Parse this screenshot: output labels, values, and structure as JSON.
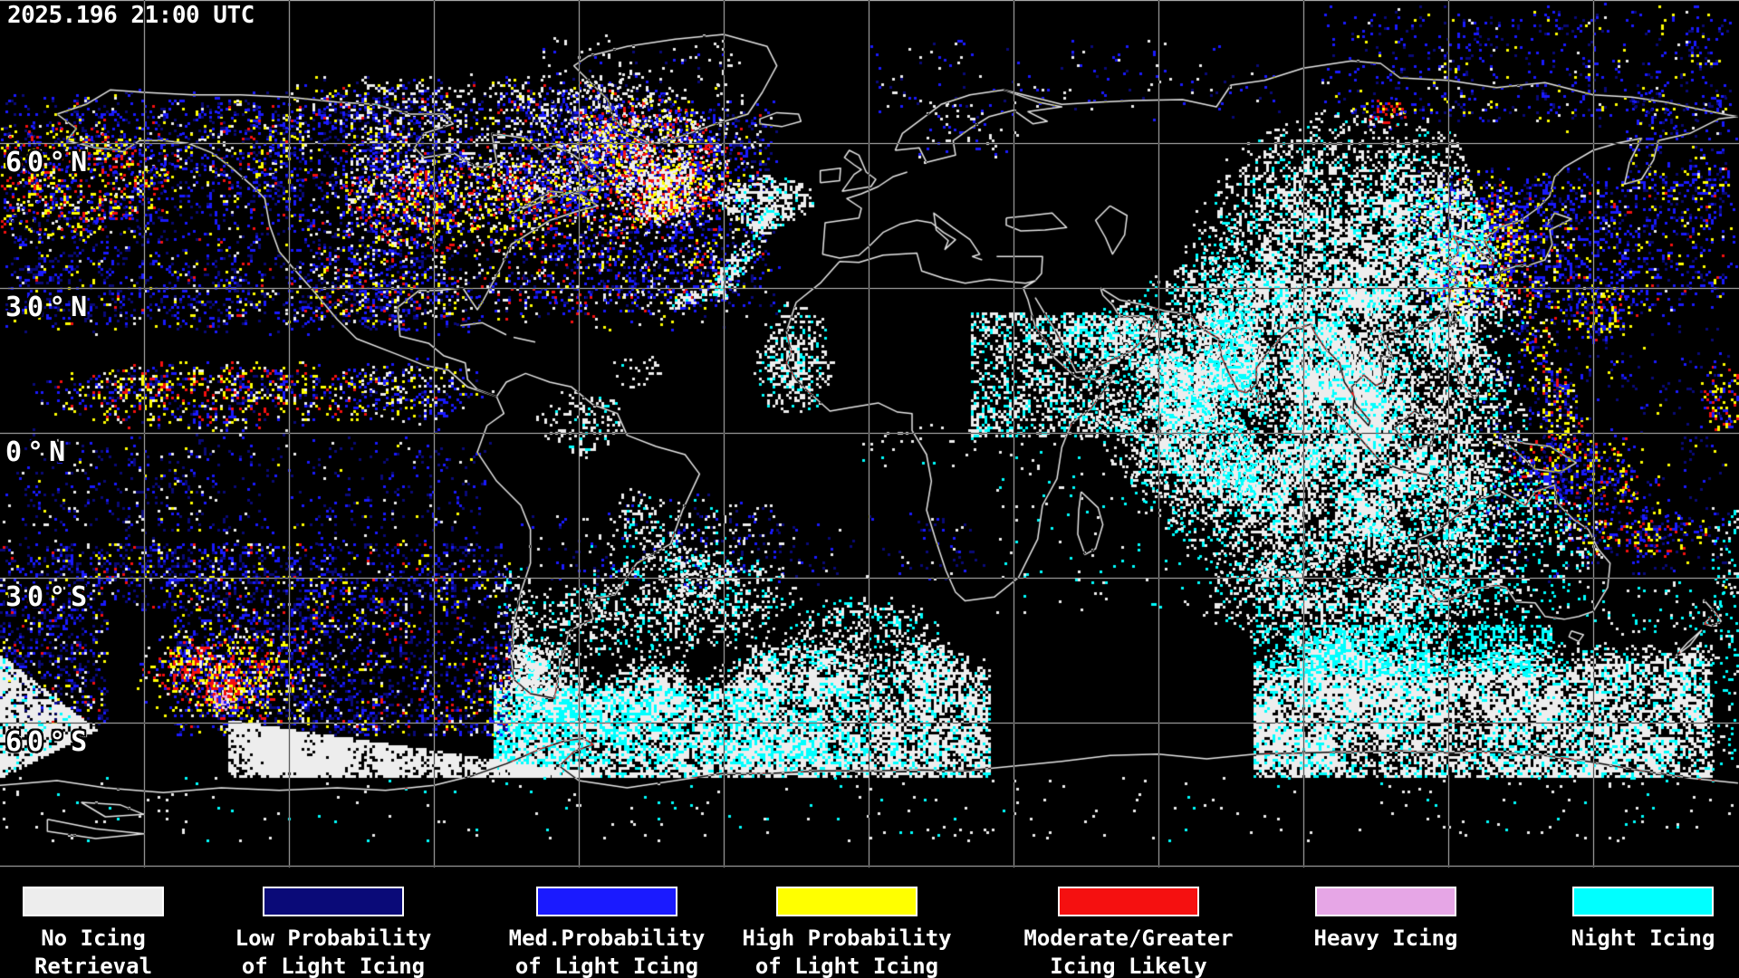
{
  "app": {
    "timestamp": "2025.196 21:00 UTC"
  },
  "map": {
    "lat_labels": [
      {
        "text": "60°N"
      },
      {
        "text": "30°N"
      },
      {
        "text": "0°N"
      },
      {
        "text": "30°S"
      },
      {
        "text": "60°S"
      }
    ],
    "grid": {
      "lat_step_deg": 30,
      "lon_step_deg": 30
    }
  },
  "palette": {
    "background": "#000000",
    "coastline": "#E6E6E6",
    "gridline": "#C0C0C0",
    "no_icing": "#EDEDED",
    "low_probability": "#0A0A78",
    "med_probability": "#1A1AFF",
    "high_probability": "#FFFF00",
    "moderate_greater": "#F51010",
    "heavy": "#E6A6E6",
    "night": "#00FFFF"
  },
  "legend": {
    "items": [
      {
        "color": "#EDEDED",
        "line1": "No Icing",
        "line2": "Retrieval"
      },
      {
        "color": "#0A0A78",
        "line1": "Low Probability",
        "line2": "of Light Icing"
      },
      {
        "color": "#1A1AFF",
        "line1": "Med.Probability",
        "line2": "of Light Icing"
      },
      {
        "color": "#FFFF00",
        "line1": "High Probability",
        "line2": "of Light Icing"
      },
      {
        "color": "#F51010",
        "line1": "Moderate/Greater",
        "line2": "Icing Likely"
      },
      {
        "color": "#E6A6E6",
        "line1": "Heavy Icing",
        "line2": ""
      },
      {
        "color": "#00FFFF",
        "line1": "Night Icing",
        "line2": ""
      }
    ]
  }
}
